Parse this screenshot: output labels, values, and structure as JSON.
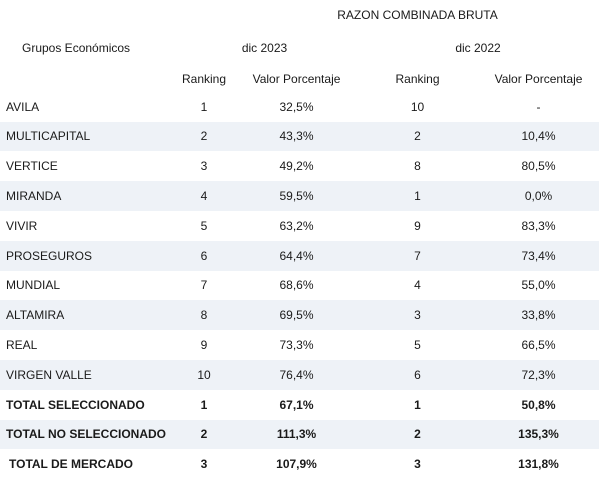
{
  "header": {
    "title": "RAZON COMBINADA BRUTA",
    "group_label": "Grupos Económicos",
    "period_1": "dic 2023",
    "period_2": "dic 2022",
    "col_ranking_1": "Ranking",
    "col_value_1": "Valor Porcentaje",
    "col_ranking_2": "Ranking",
    "col_value_2": "Valor Porcentaje"
  },
  "rows": [
    {
      "name": "AVILA",
      "rank_2023": "1",
      "value_2023": "32,5%",
      "rank_2022": "10",
      "value_2022": "-"
    },
    {
      "name": "MULTICAPITAL",
      "rank_2023": "2",
      "value_2023": "43,3%",
      "rank_2022": "2",
      "value_2022": "10,4%"
    },
    {
      "name": "VERTICE",
      "rank_2023": "3",
      "value_2023": "49,2%",
      "rank_2022": "8",
      "value_2022": "80,5%"
    },
    {
      "name": "MIRANDA",
      "rank_2023": "4",
      "value_2023": "59,5%",
      "rank_2022": "1",
      "value_2022": "0,0%"
    },
    {
      "name": "VIVIR",
      "rank_2023": "5",
      "value_2023": "63,2%",
      "rank_2022": "9",
      "value_2022": "83,3%"
    },
    {
      "name": "PROSEGUROS",
      "rank_2023": "6",
      "value_2023": "64,4%",
      "rank_2022": "7",
      "value_2022": "73,4%"
    },
    {
      "name": "MUNDIAL",
      "rank_2023": "7",
      "value_2023": "68,6%",
      "rank_2022": "4",
      "value_2022": "55,0%"
    },
    {
      "name": "ALTAMIRA",
      "rank_2023": "8",
      "value_2023": "69,5%",
      "rank_2022": "3",
      "value_2022": "33,8%"
    },
    {
      "name": "REAL",
      "rank_2023": "9",
      "value_2023": "73,3%",
      "rank_2022": "5",
      "value_2022": "66,5%"
    },
    {
      "name": "VIRGEN VALLE",
      "rank_2023": "10",
      "value_2023": "76,4%",
      "rank_2022": "6",
      "value_2022": "72,3%"
    }
  ],
  "totals": [
    {
      "name": "TOTAL SELECCIONADO",
      "rank_2023": "1",
      "value_2023": "67,1%",
      "rank_2022": "1",
      "value_2022": "50,8%"
    },
    {
      "name": "TOTAL NO SELECCIONADO",
      "rank_2023": "2",
      "value_2023": "111,3%",
      "rank_2022": "2",
      "value_2022": "135,3%"
    },
    {
      "name": "TOTAL DE MERCADO",
      "rank_2023": "3",
      "value_2023": "107,9%",
      "rank_2022": "3",
      "value_2022": "131,8%"
    }
  ],
  "colors": {
    "row_shade": "#eef2f7",
    "text": "#1a1a1a"
  }
}
